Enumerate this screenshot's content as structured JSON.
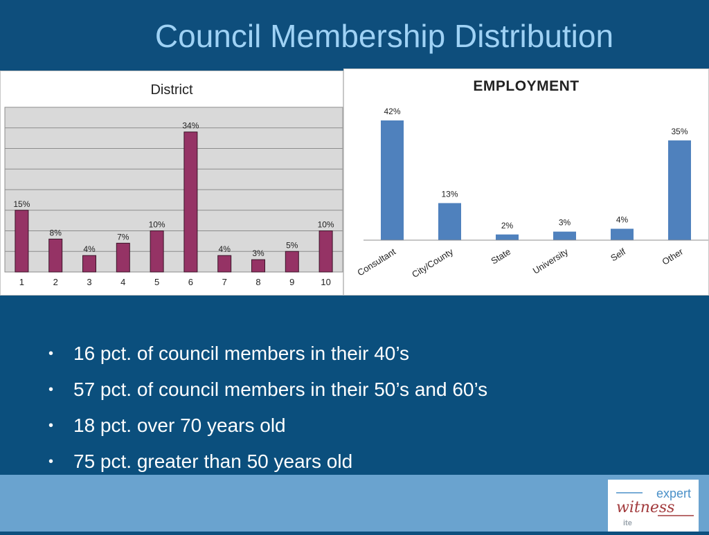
{
  "slide": {
    "title": "Council Membership Distribution"
  },
  "colors": {
    "district_bar": "#953365",
    "employment_bar": "#4f81bd",
    "logo_red": "#a23a3c",
    "logo_blue": "#4a90c8"
  },
  "chart_data": [
    {
      "type": "bar",
      "title": "District",
      "categories": [
        "1",
        "2",
        "3",
        "4",
        "5",
        "6",
        "7",
        "8",
        "9",
        "10"
      ],
      "values": [
        15,
        8,
        4,
        7,
        10,
        34,
        4,
        3,
        5,
        10
      ],
      "data_labels": [
        "15%",
        "8%",
        "4%",
        "7%",
        "10%",
        "34%",
        "4%",
        "3%",
        "5%",
        "10%"
      ],
      "ylim": [
        0,
        40
      ],
      "grid": true,
      "legend": "none"
    },
    {
      "type": "bar",
      "title": "EMPLOYMENT",
      "categories": [
        "Consultant",
        "City/County",
        "State",
        "University",
        "Self",
        "Other"
      ],
      "values": [
        42,
        13,
        2,
        3,
        4,
        35
      ],
      "data_labels": [
        "42%",
        "13%",
        "2%",
        "3%",
        "4%",
        "35%"
      ],
      "ylim": [
        0,
        42
      ],
      "grid": false,
      "legend": "none"
    }
  ],
  "bullets": [
    "16 pct. of council members in their 40’s",
    "57 pct. of council members in their 50’s and 60’s",
    "18 pct. over 70 years old",
    "75 pct. greater than 50 years old"
  ],
  "logo": {
    "word_top": "expert",
    "word_main": "witness",
    "word_small": "ite"
  }
}
